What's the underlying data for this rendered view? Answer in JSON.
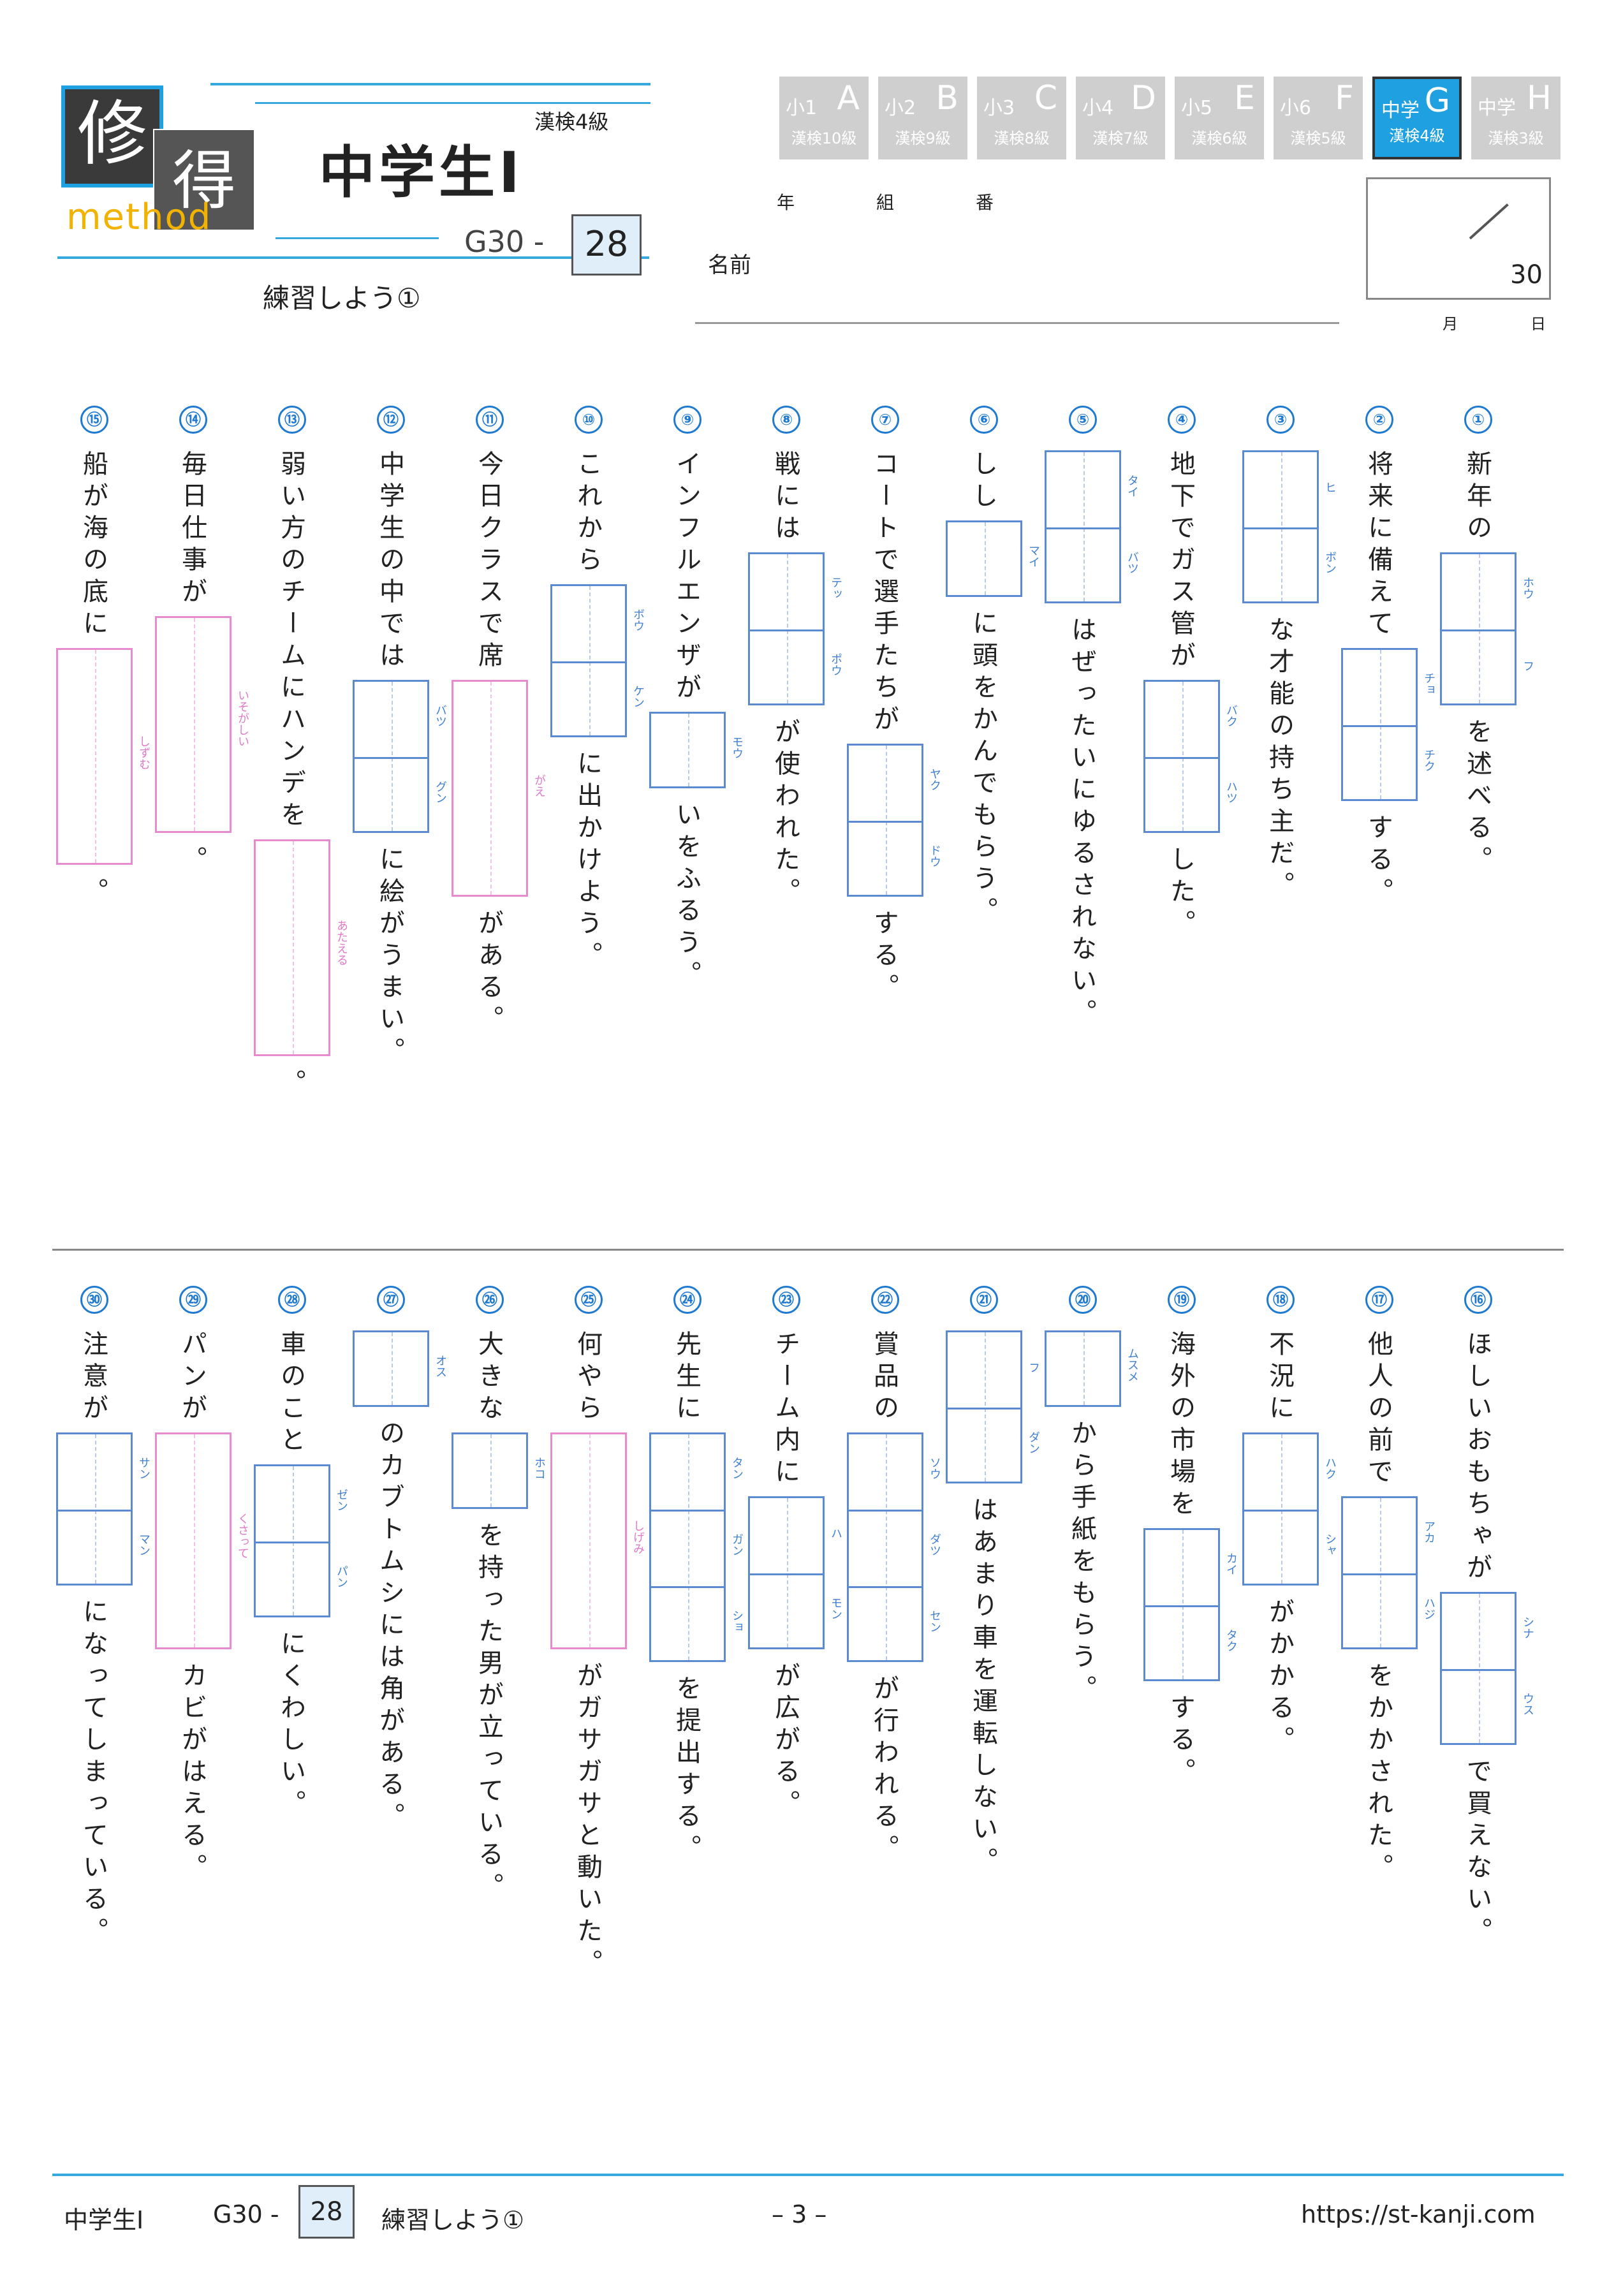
{
  "logo": {
    "char1": "修",
    "char2": "得",
    "word": "method"
  },
  "header": {
    "title": "中学生Ⅰ",
    "level": "漢検4級",
    "code_prefix": "G30 -",
    "code_num": "28",
    "subtitle": "練習しよう①"
  },
  "tabs": [
    {
      "grade": "小1",
      "letter": "A",
      "kanken": "漢検10級"
    },
    {
      "grade": "小2",
      "letter": "B",
      "kanken": "漢検9級"
    },
    {
      "grade": "小3",
      "letter": "C",
      "kanken": "漢検8級"
    },
    {
      "grade": "小4",
      "letter": "D",
      "kanken": "漢検7級"
    },
    {
      "grade": "小5",
      "letter": "E",
      "kanken": "漢検6級"
    },
    {
      "grade": "小6",
      "letter": "F",
      "kanken": "漢検5級"
    },
    {
      "grade": "中学",
      "letter": "G",
      "kanken": "漢検4級"
    },
    {
      "grade": "中学",
      "letter": "H",
      "kanken": "漢検3級"
    }
  ],
  "form": {
    "year": "年",
    "class": "組",
    "number": "番",
    "name": "名前",
    "score_total": "30",
    "month": "月",
    "day": "日"
  },
  "questions": [
    {
      "num": "①",
      "before": "新年の",
      "after": "を述べる。",
      "furi": [
        "ホウ",
        "フ"
      ]
    },
    {
      "num": "②",
      "before": "将来に備えて",
      "after": "する。",
      "furi": [
        "チョ",
        "チク"
      ]
    },
    {
      "num": "③",
      "before": "",
      "after": "な才能の持ち主だ。",
      "furi": [
        "ヒ",
        "ボン"
      ]
    },
    {
      "num": "④",
      "before": "地下でガス管が",
      "after": "した。",
      "furi": [
        "バク",
        "ハツ"
      ]
    },
    {
      "num": "⑤",
      "before": "",
      "after": "はぜったいにゆるされない。",
      "furi": [
        "タイ",
        "バツ"
      ]
    },
    {
      "num": "⑥",
      "before": "しし",
      "after": "に頭をかんでもらう。",
      "furi": [
        "マイ"
      ]
    },
    {
      "num": "⑦",
      "before": "コートで選手たちが",
      "after": "する。",
      "furi": [
        "ヤク",
        "ドウ"
      ]
    },
    {
      "num": "⑧",
      "before": "戦には",
      "after": "が使われた。",
      "furi": [
        "テッ",
        "ポウ"
      ]
    },
    {
      "num": "⑨",
      "before": "インフルエンザが",
      "after": "いをふるう。",
      "furi": [
        "モウ"
      ]
    },
    {
      "num": "⑩",
      "before": "これから",
      "after": "に出かけよう。",
      "furi": [
        "ボウ",
        "ケン"
      ]
    },
    {
      "num": "⑪",
      "before": "今日クラスで席",
      "after": "がある。",
      "furi": [
        "がえ"
      ]
    },
    {
      "num": "⑫",
      "before": "中学生の中では",
      "after": "に絵がうまい。",
      "furi": [
        "バツ",
        "グン"
      ]
    },
    {
      "num": "⑬",
      "before": "弱い方のチームにハンデを",
      "after": "。",
      "furi": [
        "あたえる"
      ]
    },
    {
      "num": "⑭",
      "before": "毎日仕事が",
      "after": "。",
      "furi": [
        "いそがしい"
      ]
    },
    {
      "num": "⑮",
      "before": "船が海の底に",
      "after": "。",
      "furi": [
        "しずむ"
      ]
    },
    {
      "num": "⑯",
      "before": "ほしいおもちゃが",
      "after": "で買えない。",
      "furi": [
        "シナ",
        "ウス"
      ]
    },
    {
      "num": "⑰",
      "before": "他人の前で",
      "after": "をかかされた。",
      "furi": [
        "アカ",
        "ハジ"
      ]
    },
    {
      "num": "⑱",
      "before": "不況に",
      "after": "がかかる。",
      "furi": [
        "ハク",
        "シャ"
      ]
    },
    {
      "num": "⑲",
      "before": "海外の市場を",
      "after": "する。",
      "furi": [
        "カイ",
        "タク"
      ]
    },
    {
      "num": "⑳",
      "before": "",
      "after": "から手紙をもらう。",
      "furi": [
        "ムスメ"
      ]
    },
    {
      "num": "㉑",
      "before": "",
      "after": "はあまり車を運転しない。",
      "furi": [
        "フ",
        "ダン"
      ]
    },
    {
      "num": "㉒",
      "before": "賞品の",
      "after": "が行われる。",
      "furi": [
        "ソウ",
        "ダツ",
        "セン"
      ]
    },
    {
      "num": "㉓",
      "before": "チーム内に",
      "after": "が広がる。",
      "furi": [
        "ハ",
        "モン"
      ]
    },
    {
      "num": "㉔",
      "before": "先生に",
      "after": "を提出する。",
      "furi": [
        "タン",
        "ガン",
        "ショ"
      ]
    },
    {
      "num": "㉕",
      "before": "何やら",
      "after": "がガサガサと動いた。",
      "furi": [
        "しげみ"
      ]
    },
    {
      "num": "㉖",
      "before": "大きな",
      "after": "を持った男が立っている。",
      "furi": [
        "ホコ"
      ]
    },
    {
      "num": "㉗",
      "before": "",
      "after": "のカブトムシには角がある。",
      "furi": [
        "オス"
      ]
    },
    {
      "num": "㉘",
      "before": "車のこと",
      "after": "にくわしい。",
      "furi": [
        "ゼン",
        "パン"
      ]
    },
    {
      "num": "㉙",
      "before": "パンが",
      "after": "カビがはえる。",
      "furi": [
        "くさって"
      ]
    },
    {
      "num": "㉚",
      "before": "注意が",
      "after": "になってしまっている。",
      "furi": [
        "サン",
        "マン"
      ]
    }
  ],
  "footer": {
    "title": "中学生Ⅰ",
    "code_prefix": "G30 -",
    "code_num": "28",
    "subtitle": "練習しよう①",
    "page": "– 3 –",
    "url": "https://st-kanji.com"
  },
  "colors": {
    "accent": "#1fa0e0",
    "box_blue": "#5b8ad0",
    "box_pink": "#e88ad0"
  }
}
